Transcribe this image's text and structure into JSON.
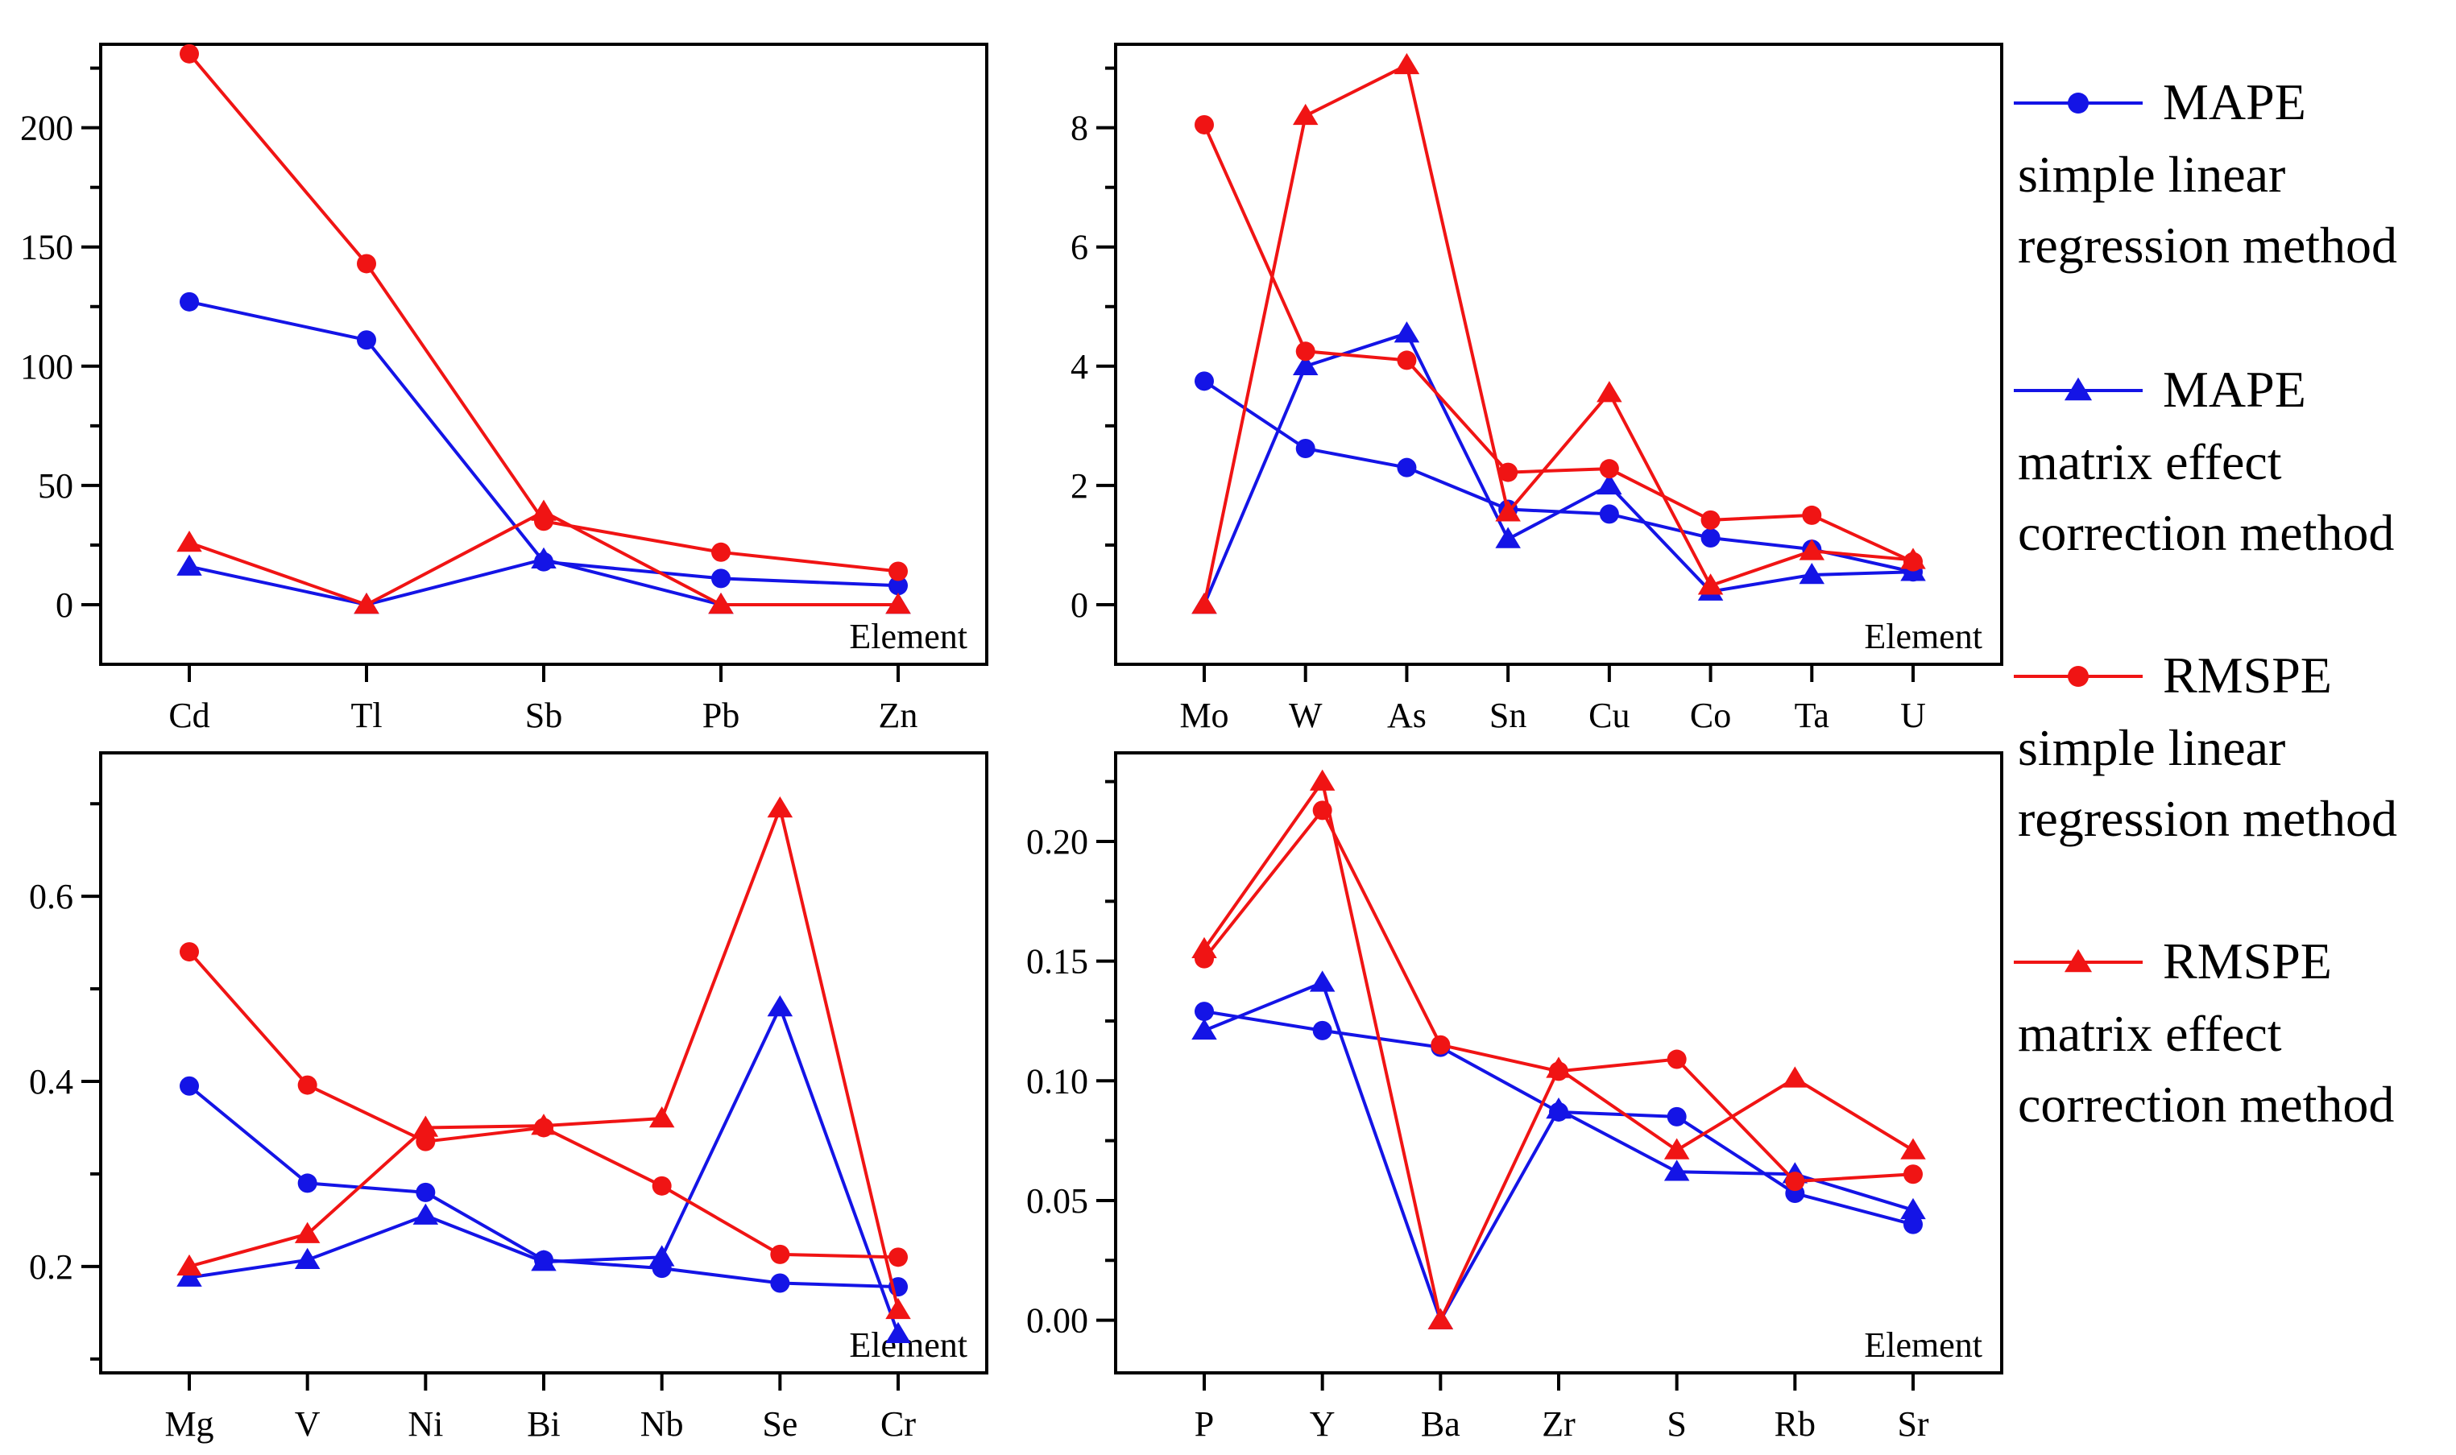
{
  "colors": {
    "blue": "#1414E6",
    "red": "#F01414"
  },
  "legend": [
    {
      "label": "MAPE",
      "line2": "simple linear",
      "line3": "regression method",
      "color": "#1414E6",
      "marker": "circle"
    },
    {
      "label": "MAPE",
      "line2": "matrix effect",
      "line3": "correction method",
      "color": "#1414E6",
      "marker": "triangle"
    },
    {
      "label": "RMSPE",
      "line2": "simple linear",
      "line3": "regression method",
      "color": "#F01414",
      "marker": "circle"
    },
    {
      "label": "RMSPE",
      "line2": "matrix effect",
      "line3": "correction method",
      "color": "#F01414",
      "marker": "triangle"
    }
  ],
  "chart_data": [
    {
      "type": "line",
      "xlabel": "Element",
      "categories": [
        "Cd",
        "Tl",
        "Sb",
        "Pb",
        "Zn"
      ],
      "ylim": [
        -25,
        235
      ],
      "yticks": [
        0,
        50,
        100,
        150,
        200
      ],
      "ytick_labels": [
        "0",
        "50",
        "100",
        "150",
        "200"
      ],
      "series": [
        {
          "name": "MAPE simple linear regression method",
          "color": "#1414E6",
          "marker": "circle",
          "values": [
            127,
            111,
            18,
            11,
            8
          ]
        },
        {
          "name": "MAPE matrix effect correction method",
          "color": "#1414E6",
          "marker": "triangle",
          "values": [
            16,
            0,
            19,
            0,
            0
          ]
        },
        {
          "name": "RMSPE simple linear regression method",
          "color": "#F01414",
          "marker": "circle",
          "values": [
            231,
            143,
            35,
            22,
            14
          ]
        },
        {
          "name": "RMSPE matrix effect correction method",
          "color": "#F01414",
          "marker": "triangle",
          "values": [
            26,
            0,
            39,
            0,
            0
          ]
        }
      ]
    },
    {
      "type": "line",
      "xlabel": "Element",
      "categories": [
        "Mo",
        "W",
        "As",
        "Sn",
        "Cu",
        "Co",
        "Ta",
        "U"
      ],
      "ylim": [
        -1,
        9.4
      ],
      "yticks": [
        0,
        2,
        4,
        6,
        8
      ],
      "ytick_labels": [
        "0",
        "2",
        "4",
        "6",
        "8"
      ],
      "series": [
        {
          "name": "MAPE simple linear regression method",
          "color": "#1414E6",
          "marker": "circle",
          "values": [
            3.75,
            2.62,
            2.3,
            1.6,
            1.52,
            1.12,
            0.93,
            0.55
          ]
        },
        {
          "name": "MAPE matrix effect correction method",
          "color": "#1414E6",
          "marker": "triangle",
          "values": [
            0,
            4.0,
            4.55,
            1.1,
            2.0,
            0.22,
            0.5,
            0.55
          ]
        },
        {
          "name": "RMSPE simple linear regression method",
          "color": "#F01414",
          "marker": "circle",
          "values": [
            8.05,
            4.25,
            4.1,
            2.22,
            2.28,
            1.42,
            1.5,
            0.72
          ]
        },
        {
          "name": "RMSPE matrix effect correction method",
          "color": "#F01414",
          "marker": "triangle",
          "values": [
            0,
            8.2,
            9.05,
            1.55,
            3.55,
            0.32,
            0.9,
            0.75
          ]
        }
      ]
    },
    {
      "type": "line",
      "xlabel": "Element",
      "categories": [
        "Mg",
        "V",
        "Ni",
        "Bi",
        "Nb",
        "Se",
        "Cr"
      ],
      "ylim": [
        0.085,
        0.755
      ],
      "yticks": [
        0.2,
        0.4,
        0.6
      ],
      "ytick_labels": [
        "0.2",
        "0.4",
        "0.6"
      ],
      "series": [
        {
          "name": "MAPE simple linear regression method",
          "color": "#1414E6",
          "marker": "circle",
          "values": [
            0.395,
            0.29,
            0.28,
            0.207,
            0.198,
            0.182,
            0.178
          ]
        },
        {
          "name": "MAPE matrix effect correction method",
          "color": "#1414E6",
          "marker": "triangle",
          "values": [
            0.188,
            0.207,
            0.255,
            0.205,
            0.21,
            0.48,
            0.127
          ]
        },
        {
          "name": "RMSPE simple linear regression method",
          "color": "#F01414",
          "marker": "circle",
          "values": [
            0.54,
            0.396,
            0.335,
            0.35,
            0.287,
            0.213,
            0.21
          ]
        },
        {
          "name": "RMSPE matrix effect correction method",
          "color": "#F01414",
          "marker": "triangle",
          "values": [
            0.2,
            0.235,
            0.35,
            0.352,
            0.36,
            0.695,
            0.153
          ]
        }
      ]
    },
    {
      "type": "line",
      "xlabel": "Element",
      "categories": [
        "P",
        "Y",
        "Ba",
        "Zr",
        "S",
        "Rb",
        "Sr"
      ],
      "ylim": [
        -0.022,
        0.237
      ],
      "yticks": [
        0,
        0.05,
        0.1,
        0.15,
        0.2
      ],
      "ytick_labels": [
        "0.00",
        "0.05",
        "0.10",
        "0.15",
        "0.20"
      ],
      "series": [
        {
          "name": "MAPE simple linear regression method",
          "color": "#1414E6",
          "marker": "circle",
          "values": [
            0.129,
            0.121,
            0.114,
            0.087,
            0.085,
            0.053,
            0.04
          ]
        },
        {
          "name": "MAPE matrix effect correction method",
          "color": "#1414E6",
          "marker": "triangle",
          "values": [
            0.121,
            0.141,
            0.0,
            0.088,
            0.062,
            0.061,
            0.046
          ]
        },
        {
          "name": "RMSPE simple linear regression method",
          "color": "#F01414",
          "marker": "circle",
          "values": [
            0.151,
            0.213,
            0.115,
            0.104,
            0.109,
            0.058,
            0.061
          ]
        },
        {
          "name": "RMSPE matrix effect correction method",
          "color": "#F01414",
          "marker": "triangle",
          "values": [
            0.155,
            0.225,
            0.0,
            0.105,
            0.071,
            0.101,
            0.071
          ]
        }
      ]
    }
  ]
}
